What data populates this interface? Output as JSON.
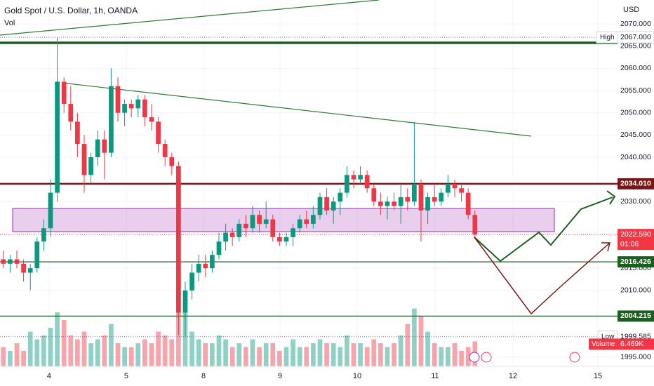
{
  "chart_data": {
    "type": "candlestick",
    "title": "Gold Spot / U.S. Dollar, 1h, OANDA",
    "subtitle": "Vol",
    "y_axis_label": "USD",
    "up_color": "#089981",
    "down_color": "#f23645",
    "xlim": [
      -0.5,
      91.17
    ],
    "ylim": [
      1992.9,
      2075.4
    ],
    "xticks": [
      {
        "value": 6.79,
        "label": "4"
      },
      {
        "value": 18.25,
        "label": "5"
      },
      {
        "value": 29.71,
        "label": "8"
      },
      {
        "value": 41.06,
        "label": "9"
      },
      {
        "value": 52.52,
        "label": "10"
      },
      {
        "value": 64.08,
        "label": "11"
      },
      {
        "value": 75.65,
        "label": "12"
      },
      {
        "value": 88.25,
        "label": "15"
      }
    ],
    "yticks": [
      {
        "value": 1995,
        "label": "1995.000"
      },
      {
        "value": 2010,
        "label": "2010.000"
      },
      {
        "value": 2015,
        "label": "2015.000"
      },
      {
        "value": 2030,
        "label": "2030.000"
      },
      {
        "value": 2040,
        "label": "2040.000"
      },
      {
        "value": 2045,
        "label": "2045.000"
      },
      {
        "value": 2050,
        "label": "2050.000"
      },
      {
        "value": 2055,
        "label": "2055.000"
      },
      {
        "value": 2060,
        "label": "2060.000"
      },
      {
        "value": 2065,
        "label": "2065.000"
      },
      {
        "value": 2070,
        "label": "2070.000"
      }
    ],
    "grid": true,
    "x": [
      0,
      1,
      2,
      3,
      4,
      5,
      6,
      7,
      8,
      9,
      10,
      11,
      12,
      13,
      14,
      15,
      16,
      17,
      18,
      19,
      20,
      21,
      22,
      23,
      24,
      25,
      26,
      27,
      28,
      29,
      30,
      31,
      32,
      33,
      34,
      35,
      36,
      37,
      38,
      39,
      40,
      41,
      42,
      43,
      44,
      45,
      46,
      47,
      48,
      49,
      50,
      51,
      52,
      53,
      54,
      55,
      56,
      57,
      58,
      59,
      60,
      61,
      62,
      63,
      64,
      65,
      66,
      67,
      68,
      69,
      70
    ],
    "candles": [
      [
        2017,
        2019,
        2015,
        2016
      ],
      [
        2016,
        2018,
        2014,
        2017
      ],
      [
        2017,
        2019,
        2015,
        2016
      ],
      [
        2016,
        2017,
        2012,
        2014
      ],
      [
        2014,
        2016,
        2010,
        2015
      ],
      [
        2015,
        2022,
        2014,
        2021
      ],
      [
        2021,
        2026,
        2019,
        2024
      ],
      [
        2024,
        2035,
        2022,
        2032
      ],
      [
        2032,
        2067,
        2030,
        2057
      ],
      [
        2057,
        2058,
        2050,
        2052
      ],
      [
        2052,
        2056,
        2046,
        2048
      ],
      [
        2048,
        2050,
        2040,
        2043
      ],
      [
        2043,
        2045,
        2032,
        2036
      ],
      [
        2036,
        2041,
        2034,
        2040
      ],
      [
        2040,
        2046,
        2038,
        2044
      ],
      [
        2044,
        2046,
        2035,
        2041
      ],
      [
        2041,
        2060,
        2040,
        2056
      ],
      [
        2056,
        2058,
        2048,
        2050
      ],
      [
        2050,
        2053,
        2047,
        2052
      ],
      [
        2052,
        2053,
        2049,
        2051
      ],
      [
        2051,
        2054,
        2049,
        2053
      ],
      [
        2053,
        2054,
        2047,
        2049
      ],
      [
        2049,
        2052,
        2046,
        2048
      ],
      [
        2048,
        2049,
        2041,
        2043
      ],
      [
        2043,
        2044,
        2038,
        2040
      ],
      [
        2040,
        2041,
        2036,
        2038
      ],
      [
        2038,
        2039,
        2000,
        2005
      ],
      [
        2005,
        2012,
        1999.585,
        2010
      ],
      [
        2010,
        2016,
        2008,
        2014
      ],
      [
        2014,
        2018,
        2012,
        2016
      ],
      [
        2016,
        2018,
        2013,
        2015
      ],
      [
        2015,
        2019,
        2014,
        2018
      ],
      [
        2018,
        2023,
        2017,
        2021
      ],
      [
        2021,
        2025,
        2019,
        2023
      ],
      [
        2023,
        2024,
        2020,
        2022
      ],
      [
        2022,
        2026,
        2021,
        2025
      ],
      [
        2025,
        2027,
        2022,
        2024
      ],
      [
        2024,
        2029,
        2023,
        2027
      ],
      [
        2027,
        2028,
        2023,
        2025
      ],
      [
        2025,
        2030,
        2024,
        2026
      ],
      [
        2026,
        2027,
        2021,
        2022
      ],
      [
        2022,
        2023,
        2020,
        2021
      ],
      [
        2021,
        2023,
        2020,
        2022
      ],
      [
        2022,
        2025,
        2020,
        2024
      ],
      [
        2024,
        2027,
        2023,
        2026
      ],
      [
        2026,
        2028,
        2024,
        2025
      ],
      [
        2025,
        2029,
        2024,
        2027
      ],
      [
        2027,
        2032,
        2026,
        2031
      ],
      [
        2031,
        2033,
        2027,
        2028
      ],
      [
        2028,
        2031,
        2025,
        2030
      ],
      [
        2030,
        2033,
        2027,
        2032
      ],
      [
        2032,
        2038,
        2031,
        2036
      ],
      [
        2036,
        2037,
        2033,
        2035
      ],
      [
        2035,
        2038,
        2034,
        2036
      ],
      [
        2036,
        2037,
        2032,
        2033
      ],
      [
        2033,
        2034,
        2029,
        2030
      ],
      [
        2030,
        2032,
        2027,
        2029
      ],
      [
        2029,
        2031,
        2026,
        2030
      ],
      [
        2030,
        2032,
        2028,
        2029
      ],
      [
        2029,
        2034,
        2025,
        2031
      ],
      [
        2031,
        2033,
        2028,
        2030
      ],
      [
        2030,
        2048,
        2029,
        2034
      ],
      [
        2034,
        2035,
        2021,
        2028
      ],
      [
        2028,
        2032,
        2025,
        2031
      ],
      [
        2031,
        2034,
        2029,
        2030
      ],
      [
        2030,
        2033,
        2029,
        2032
      ],
      [
        2032,
        2036,
        2031,
        2034
      ],
      [
        2034,
        2035,
        2031,
        2033
      ],
      [
        2033,
        2034,
        2030,
        2032
      ],
      [
        2032,
        2033,
        2026,
        2027
      ],
      [
        2027,
        2028,
        2022,
        2022.59
      ]
    ],
    "volume": [
      5,
      4,
      6,
      4,
      9,
      7,
      8,
      10,
      14,
      12,
      8,
      7,
      9,
      6,
      7,
      8,
      11,
      6,
      5,
      5,
      6,
      7,
      6,
      9,
      8,
      7,
      22,
      17,
      9,
      7,
      6,
      6,
      8,
      7,
      5,
      6,
      5,
      7,
      5,
      6,
      6,
      4,
      5,
      7,
      5,
      5,
      6,
      7,
      6,
      6,
      5,
      8,
      6,
      6,
      5,
      7,
      6,
      5,
      6,
      8,
      11,
      15,
      13,
      9,
      6,
      5,
      5,
      6,
      4,
      5,
      6.469
    ],
    "levels": [
      {
        "value": 2034.01,
        "label": "2034.010",
        "color": "#7b1616"
      },
      {
        "value": 2016.426,
        "label": "2016.426",
        "color": "#1b5e20"
      },
      {
        "value": 2004.215,
        "label": "2004.215",
        "color": "#1b5e20"
      }
    ],
    "current_price": {
      "value": 2022.59,
      "label": "2022.590",
      "countdown": "01:06",
      "color": "#f23645"
    },
    "high": {
      "name": "High",
      "value": 2067,
      "label": "2067.000"
    },
    "low": {
      "name": "Low",
      "value": 1999.585,
      "label": "1999.585"
    },
    "volume_last": {
      "name": "Volume",
      "value": 6.469,
      "label": "6.469K"
    }
  }
}
